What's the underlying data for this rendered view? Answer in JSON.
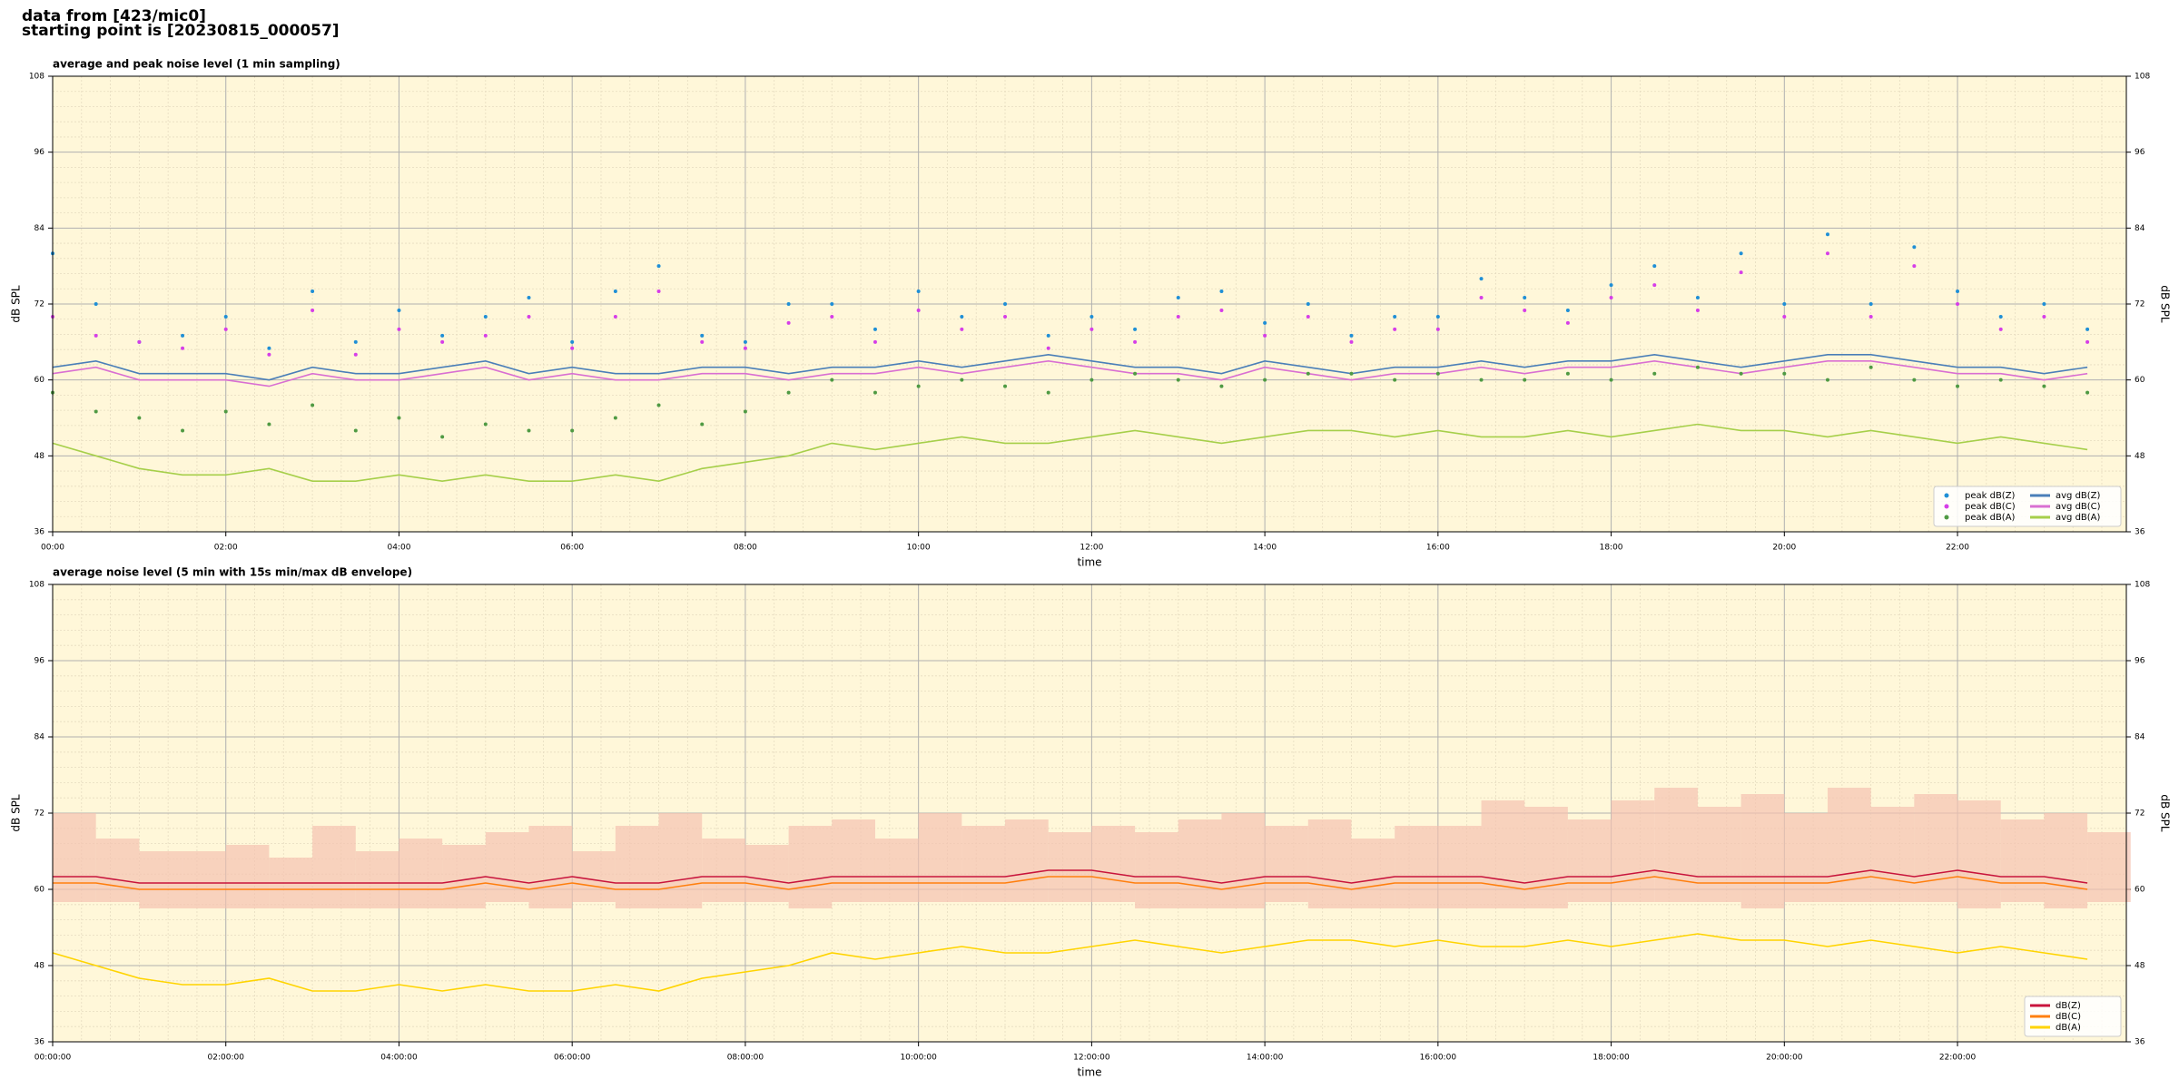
{
  "header": {
    "lines": [
      "data from [423/mic0]",
      "starting point is [20230815_000057]"
    ]
  },
  "chart_data": [
    {
      "type": "line",
      "title": "average and peak noise level (1 min sampling)",
      "xlabel": "time",
      "ylabel": "dB SPL",
      "background": "#fff7d9",
      "grid": true,
      "legend": "lower right",
      "legend_columns": 2,
      "xlim": [
        0,
        1437
      ],
      "ylim": [
        36,
        108
      ],
      "yticks": [
        36,
        48,
        60,
        72,
        84,
        96,
        108
      ],
      "xticks": [
        {
          "value": 0,
          "label": "00:00"
        },
        {
          "value": 120,
          "label": "02:00"
        },
        {
          "value": 240,
          "label": "04:00"
        },
        {
          "value": 360,
          "label": "06:00"
        },
        {
          "value": 480,
          "label": "08:00"
        },
        {
          "value": 600,
          "label": "10:00"
        },
        {
          "value": 720,
          "label": "12:00"
        },
        {
          "value": 840,
          "label": "14:00"
        },
        {
          "value": 960,
          "label": "16:00"
        },
        {
          "value": 1080,
          "label": "18:00"
        },
        {
          "value": 1200,
          "label": "20:00"
        },
        {
          "value": 1320,
          "label": "22:00"
        }
      ],
      "x": [
        0,
        30,
        60,
        90,
        120,
        150,
        180,
        210,
        240,
        270,
        300,
        330,
        360,
        390,
        420,
        450,
        480,
        510,
        540,
        570,
        600,
        630,
        660,
        690,
        720,
        750,
        780,
        810,
        840,
        870,
        900,
        930,
        960,
        990,
        1020,
        1050,
        1080,
        1110,
        1140,
        1170,
        1200,
        1230,
        1260,
        1290,
        1320,
        1350,
        1380,
        1410
      ],
      "series": [
        {
          "name": "peak dB(Z)",
          "style": "dots",
          "color": "#1f8fd6",
          "values": [
            80,
            72,
            66,
            67,
            70,
            65,
            74,
            66,
            71,
            67,
            70,
            73,
            66,
            74,
            78,
            67,
            66,
            72,
            72,
            68,
            74,
            70,
            72,
            67,
            70,
            68,
            73,
            74,
            69,
            72,
            67,
            70,
            70,
            76,
            73,
            71,
            75,
            78,
            73,
            80,
            72,
            83,
            72,
            81,
            74,
            70,
            72,
            68
          ]
        },
        {
          "name": "peak dB(C)",
          "style": "dots",
          "color": "#d63ee8",
          "values": [
            70,
            67,
            66,
            65,
            68,
            64,
            71,
            64,
            68,
            66,
            67,
            70,
            65,
            70,
            74,
            66,
            65,
            69,
            70,
            66,
            71,
            68,
            70,
            65,
            68,
            66,
            70,
            71,
            67,
            70,
            66,
            68,
            68,
            73,
            71,
            69,
            73,
            75,
            71,
            77,
            70,
            80,
            70,
            78,
            72,
            68,
            70,
            66
          ]
        },
        {
          "name": "peak dB(A)",
          "style": "dots",
          "color": "#4f9a43",
          "values": [
            58,
            55,
            54,
            52,
            55,
            53,
            56,
            52,
            54,
            51,
            53,
            52,
            52,
            54,
            56,
            53,
            55,
            58,
            60,
            58,
            59,
            60,
            59,
            58,
            60,
            61,
            60,
            59,
            60,
            61,
            61,
            60,
            61,
            60,
            60,
            61,
            60,
            61,
            62,
            61,
            61,
            60,
            62,
            60,
            59,
            60,
            59,
            58
          ]
        },
        {
          "name": "avg dB(Z)",
          "style": "line",
          "color": "#4a7fb8",
          "values": [
            62,
            63,
            61,
            61,
            61,
            60,
            62,
            61,
            61,
            62,
            63,
            61,
            62,
            61,
            61,
            62,
            62,
            61,
            62,
            62,
            63,
            62,
            63,
            64,
            63,
            62,
            62,
            61,
            63,
            62,
            61,
            62,
            62,
            63,
            62,
            63,
            63,
            64,
            63,
            62,
            63,
            64,
            64,
            63,
            62,
            62,
            61,
            62
          ]
        },
        {
          "name": "avg dB(C)",
          "style": "line",
          "color": "#d96fd2",
          "values": [
            61,
            62,
            60,
            60,
            60,
            59,
            61,
            60,
            60,
            61,
            62,
            60,
            61,
            60,
            60,
            61,
            61,
            60,
            61,
            61,
            62,
            61,
            62,
            63,
            62,
            61,
            61,
            60,
            62,
            61,
            60,
            61,
            61,
            62,
            61,
            62,
            62,
            63,
            62,
            61,
            62,
            63,
            63,
            62,
            61,
            61,
            60,
            61
          ]
        },
        {
          "name": "avg dB(A)",
          "style": "line",
          "color": "#a6cf4a",
          "values": [
            50,
            48,
            46,
            45,
            45,
            46,
            44,
            44,
            45,
            44,
            45,
            44,
            44,
            45,
            44,
            46,
            47,
            48,
            50,
            49,
            50,
            51,
            50,
            50,
            51,
            52,
            51,
            50,
            51,
            52,
            52,
            51,
            52,
            51,
            51,
            52,
            51,
            52,
            53,
            52,
            52,
            51,
            52,
            51,
            50,
            51,
            50,
            49
          ]
        }
      ]
    },
    {
      "type": "line",
      "title": "average noise level (5 min with 15s min/max dB envelope)",
      "xlabel": "time",
      "ylabel": "dB SPL",
      "background": "#fff7d9",
      "grid": true,
      "legend": "lower right",
      "legend_columns": 1,
      "xlim": [
        0,
        1437
      ],
      "ylim": [
        36,
        108
      ],
      "yticks": [
        36,
        48,
        60,
        72,
        84,
        96,
        108
      ],
      "xticks": [
        {
          "value": 0,
          "label": "00:00:00"
        },
        {
          "value": 120,
          "label": "02:00:00"
        },
        {
          "value": 240,
          "label": "04:00:00"
        },
        {
          "value": 360,
          "label": "06:00:00"
        },
        {
          "value": 480,
          "label": "08:00:00"
        },
        {
          "value": 600,
          "label": "10:00:00"
        },
        {
          "value": 720,
          "label": "12:00:00"
        },
        {
          "value": 840,
          "label": "14:00:00"
        },
        {
          "value": 960,
          "label": "16:00:00"
        },
        {
          "value": 1080,
          "label": "18:00:00"
        },
        {
          "value": 1200,
          "label": "20:00:00"
        },
        {
          "value": 1320,
          "label": "22:00:00"
        }
      ],
      "x": [
        0,
        30,
        60,
        90,
        120,
        150,
        180,
        210,
        240,
        270,
        300,
        330,
        360,
        390,
        420,
        450,
        480,
        510,
        540,
        570,
        600,
        630,
        660,
        690,
        720,
        750,
        780,
        810,
        840,
        870,
        900,
        930,
        960,
        990,
        1020,
        1050,
        1080,
        1110,
        1140,
        1170,
        1200,
        1230,
        1260,
        1290,
        1320,
        1350,
        1380,
        1410
      ],
      "envelope": {
        "color": "#f5c2b0",
        "max": [
          72,
          68,
          66,
          66,
          67,
          65,
          70,
          66,
          68,
          67,
          69,
          70,
          66,
          70,
          72,
          68,
          67,
          70,
          71,
          68,
          72,
          70,
          71,
          69,
          70,
          69,
          71,
          72,
          70,
          71,
          68,
          70,
          70,
          74,
          73,
          71,
          74,
          76,
          73,
          75,
          72,
          76,
          73,
          75,
          74,
          71,
          72,
          69
        ],
        "min": [
          58,
          58,
          57,
          57,
          57,
          57,
          57,
          57,
          57,
          57,
          58,
          57,
          58,
          57,
          57,
          58,
          58,
          57,
          58,
          58,
          58,
          58,
          58,
          58,
          58,
          57,
          57,
          57,
          58,
          57,
          57,
          57,
          57,
          57,
          57,
          58,
          58,
          58,
          58,
          57,
          58,
          58,
          58,
          58,
          57,
          58,
          57,
          58
        ]
      },
      "series": [
        {
          "name": "dB(Z)",
          "style": "line",
          "color": "#c8143c",
          "values": [
            62,
            62,
            61,
            61,
            61,
            61,
            61,
            61,
            61,
            61,
            62,
            61,
            62,
            61,
            61,
            62,
            62,
            61,
            62,
            62,
            62,
            62,
            62,
            63,
            63,
            62,
            62,
            61,
            62,
            62,
            61,
            62,
            62,
            62,
            61,
            62,
            62,
            63,
            62,
            62,
            62,
            62,
            63,
            62,
            63,
            62,
            62,
            61
          ]
        },
        {
          "name": "dB(C)",
          "style": "line",
          "color": "#ff7f0e",
          "values": [
            61,
            61,
            60,
            60,
            60,
            60,
            60,
            60,
            60,
            60,
            61,
            60,
            61,
            60,
            60,
            61,
            61,
            60,
            61,
            61,
            61,
            61,
            61,
            62,
            62,
            61,
            61,
            60,
            61,
            61,
            60,
            61,
            61,
            61,
            60,
            61,
            61,
            62,
            61,
            61,
            61,
            61,
            62,
            61,
            62,
            61,
            61,
            60
          ]
        },
        {
          "name": "dB(A)",
          "style": "line",
          "color": "#ffd400",
          "values": [
            50,
            48,
            46,
            45,
            45,
            46,
            44,
            44,
            45,
            44,
            45,
            44,
            44,
            45,
            44,
            46,
            47,
            48,
            50,
            49,
            50,
            51,
            50,
            50,
            51,
            52,
            51,
            50,
            51,
            52,
            52,
            51,
            52,
            51,
            51,
            52,
            51,
            52,
            53,
            52,
            52,
            51,
            52,
            51,
            50,
            51,
            50,
            49
          ]
        }
      ]
    }
  ]
}
